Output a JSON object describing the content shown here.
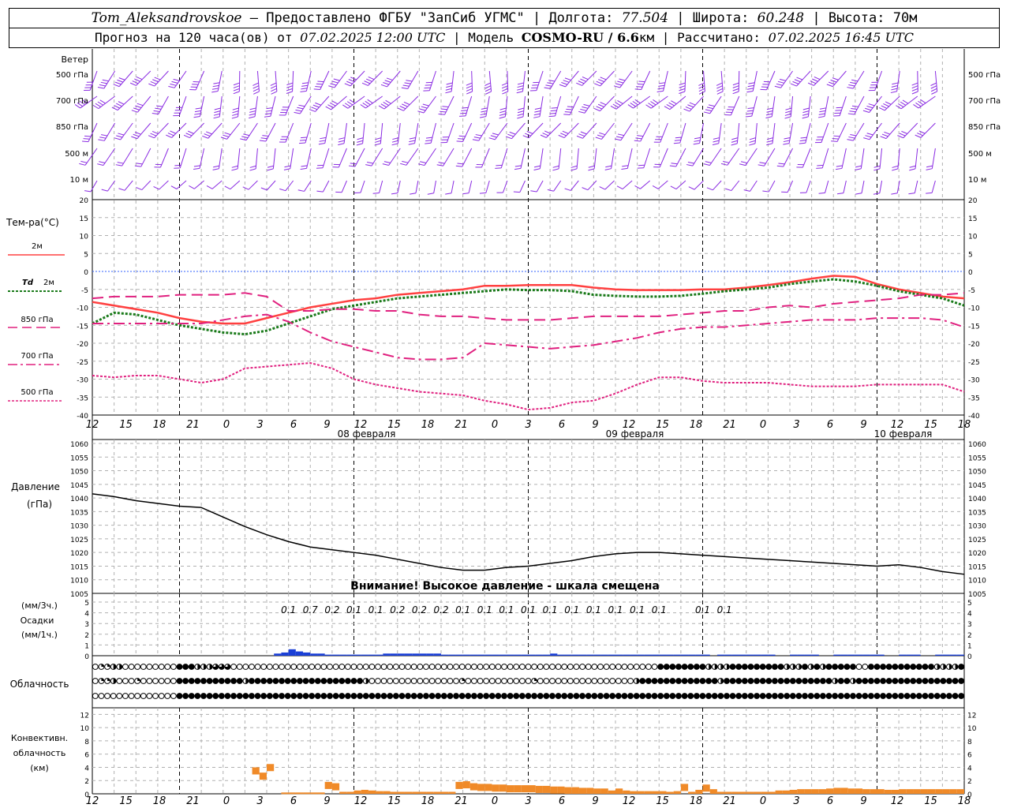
{
  "header": {
    "station": "Tom_Aleksandrovskoe",
    "provided": " — Предоставлено ФГБУ \"ЗапСиб УГМС\"",
    "lon_label": " | Долгота: ",
    "lon": "77.504",
    "lat_label": " | Широта: ",
    "lat": "60.248",
    "alt_label": " | Высота: ",
    "alt": "70м"
  },
  "subheader": {
    "forecast": "Прогноз на 120 часа(ов) от ",
    "from": "07.02.2025 12:00 UTC",
    "model_label": " | Модель ",
    "model": "COSMO-RU / 6.6",
    "model_unit": "км",
    "calc_label": " | Рассчитано: ",
    "calc": "07.02.2025 16:45 UTC"
  },
  "labels": {
    "wind": "Ветер",
    "levels": [
      "500 гПа",
      "700 гПа",
      "850 гПа",
      "500 м",
      "10  м"
    ],
    "temp": "Тем-ра(°C)",
    "t2m": "2м",
    "td": "Td",
    "td2m": "2м",
    "t850": "850 гПа",
    "t700": "700 гПа",
    "t500": "500 гПа",
    "pressure": "Давление",
    "pressure_unit": "(гПа)",
    "precip_unit3": "(мм/3ч.)",
    "precip": "Осадки",
    "precip_unit1": "(мм/1ч.)",
    "cloud": "Облачность",
    "conv1": "Конвективн.",
    "conv2": "облачность",
    "conv3": "(км)",
    "warning": "Внимание! Высокое давление - шкала смещена"
  },
  "colors": {
    "wind": "#8a2be2",
    "t2m": "#ff4040",
    "td": "#1a7a1a",
    "upper": "#e0207f",
    "zero_line": "#3060ff",
    "precip": "#1a3fd6",
    "conv": "#f08a28"
  },
  "chart_data": {
    "type": "line",
    "x_hours": [
      12,
      15,
      18,
      21,
      0,
      3,
      6,
      9,
      12,
      15,
      18,
      21,
      0,
      3,
      6,
      9,
      12,
      15,
      18,
      21,
      0,
      3,
      6,
      9,
      12,
      15,
      18
    ],
    "dates": [
      "08 февраля",
      "09 февраля",
      "10 февраля"
    ],
    "temperature": {
      "ylim": [
        -40,
        20
      ],
      "yticks": [
        20,
        15,
        10,
        5,
        0,
        -5,
        -10,
        -15,
        -20,
        -25,
        -30,
        -35,
        -40
      ],
      "x": [
        0,
        3,
        6,
        9,
        12,
        15,
        18,
        21,
        24,
        27,
        30,
        33,
        36,
        39,
        42,
        45,
        48,
        51,
        54,
        57,
        60,
        63,
        66,
        69,
        72,
        75,
        78,
        81,
        84,
        87,
        90,
        93,
        96,
        99,
        102,
        105,
        108,
        111,
        114,
        117,
        120
      ],
      "series": [
        {
          "name": "2м",
          "values": [
            -8.5,
            -9.5,
            -10.5,
            -11.5,
            -13,
            -14,
            -14.5,
            -14.5,
            -13,
            -11.5,
            -10,
            -9,
            -8,
            -7.5,
            -6.5,
            -6,
            -5.5,
            -5,
            -4,
            -4,
            -3.8,
            -3.8,
            -3.8,
            -4.5,
            -5,
            -5.2,
            -5.2,
            -5.2,
            -5,
            -5,
            -4.5,
            -3.8,
            -3,
            -2,
            -1.2,
            -1.5,
            -3.5,
            -5,
            -6,
            -7,
            -7.5
          ]
        },
        {
          "name": "Td 2м",
          "values": [
            -14.5,
            -11.5,
            -12,
            -13.5,
            -15,
            -16,
            -17,
            -17.5,
            -16.5,
            -14.5,
            -12.5,
            -10.5,
            -9.5,
            -8.5,
            -7.5,
            -7,
            -6.5,
            -6,
            -5.5,
            -5,
            -5.2,
            -5.2,
            -5.5,
            -6.5,
            -6.8,
            -7,
            -7,
            -6.8,
            -6.2,
            -5.5,
            -5,
            -4.5,
            -3.5,
            -2.8,
            -2.2,
            -2.8,
            -4,
            -5.5,
            -6.5,
            -7.5,
            -9.5
          ]
        },
        {
          "name": "850 гПа",
          "values": [
            -7.5,
            -7,
            -7,
            -7,
            -6.5,
            -6.5,
            -6.5,
            -6,
            -7,
            -11,
            -11,
            -10.5,
            -10.5,
            -11,
            -11,
            -12,
            -12.5,
            -12.5,
            -13,
            -13.5,
            -13.5,
            -13.5,
            -13,
            -12.5,
            -12.5,
            -12.5,
            -12.5,
            -12,
            -11.5,
            -11,
            -11,
            -10,
            -9.5,
            -10,
            -9,
            -8.5,
            -8,
            -7.5,
            -6.5,
            -6.5,
            -6
          ]
        },
        {
          "name": "700 гПа",
          "values": [
            -14.5,
            -14.5,
            -14.5,
            -14.5,
            -14.5,
            -14.5,
            -13.5,
            -12.5,
            -12,
            -14,
            -17,
            -19.5,
            -21,
            -22.5,
            -24,
            -24.5,
            -24.5,
            -24,
            -20,
            -20.5,
            -21,
            -21.5,
            -21,
            -20.5,
            -19.5,
            -18.5,
            -17,
            -16,
            -15.5,
            -15.5,
            -15,
            -14.5,
            -14,
            -13.5,
            -13.5,
            -13.5,
            -13,
            -13,
            -13,
            -13.5,
            -15.5
          ]
        },
        {
          "name": "500 гПа",
          "values": [
            -29,
            -29.5,
            -29,
            -29,
            -30,
            -31,
            -30,
            -27,
            -26.5,
            -26,
            -25.5,
            -27,
            -30,
            -31.5,
            -32.5,
            -33.5,
            -34,
            -34.5,
            -36,
            -37,
            -38.5,
            -38,
            -36.5,
            -36,
            -34,
            -31.5,
            -29.5,
            -29.5,
            -30.5,
            -31,
            -31,
            -31,
            -31.5,
            -32,
            -32,
            -32,
            -31.5,
            -31.5,
            -31.5,
            -31.5,
            -33.5
          ]
        }
      ]
    },
    "pressure": {
      "ylim": [
        1005,
        1060
      ],
      "yticks": [
        1060,
        1055,
        1050,
        1045,
        1040,
        1035,
        1030,
        1025,
        1020,
        1015,
        1010,
        1005
      ],
      "x": [
        0,
        3,
        6,
        9,
        12,
        15,
        18,
        21,
        24,
        27,
        30,
        33,
        36,
        39,
        42,
        45,
        48,
        51,
        54,
        57,
        60,
        63,
        66,
        69,
        72,
        75,
        78,
        81,
        84,
        87,
        90,
        93,
        96,
        99,
        102,
        105,
        108,
        111,
        114,
        117,
        120
      ],
      "values": [
        1041.5,
        1040.5,
        1039,
        1038,
        1037,
        1036.5,
        1033,
        1029.5,
        1026.5,
        1024,
        1022,
        1021,
        1020,
        1019,
        1017.5,
        1016,
        1014.5,
        1013.5,
        1013.5,
        1014.5,
        1015,
        1016,
        1017,
        1018.5,
        1019.5,
        1020,
        1020,
        1019.5,
        1019,
        1018.5,
        1018,
        1017.5,
        1017,
        1016.5,
        1016,
        1015.5,
        1015,
        1015.5,
        1014.5,
        1013,
        1012
      ]
    },
    "precipitation": {
      "ylim": [
        0,
        5
      ],
      "yticks": [
        5,
        4,
        3,
        2,
        1,
        0
      ],
      "totals_3h": [
        "0.1",
        "0.7",
        "0.2",
        "0.1",
        "0.1",
        "0.2",
        "0.2",
        "0.2",
        "0.1",
        "0.1",
        "0.1",
        "0.1",
        "0.1",
        "0.1",
        "0.1",
        "0.1",
        "0.1",
        "0.1",
        "0.1",
        "0.1"
      ],
      "totals_x": [
        27,
        30,
        33,
        36,
        39,
        42,
        45,
        48,
        51,
        54,
        57,
        60,
        63,
        66,
        69,
        72,
        75,
        78,
        84,
        87
      ],
      "hourly": [
        [
          26,
          0.2
        ],
        [
          27,
          0.3
        ],
        [
          28,
          0.6
        ],
        [
          29,
          0.4
        ],
        [
          30,
          0.3
        ],
        [
          31,
          0.2
        ],
        [
          32,
          0.2
        ],
        [
          33,
          0.1
        ],
        [
          34,
          0.1
        ],
        [
          35,
          0.1
        ],
        [
          36,
          0.1
        ],
        [
          37,
          0.1
        ],
        [
          38,
          0.1
        ],
        [
          39,
          0.1
        ],
        [
          40,
          0.1
        ],
        [
          41,
          0.2
        ],
        [
          42,
          0.2
        ],
        [
          43,
          0.2
        ],
        [
          44,
          0.2
        ],
        [
          45,
          0.2
        ],
        [
          46,
          0.2
        ],
        [
          47,
          0.2
        ],
        [
          48,
          0.2
        ],
        [
          49,
          0.1
        ],
        [
          50,
          0.1
        ],
        [
          51,
          0.1
        ],
        [
          52,
          0.1
        ],
        [
          53,
          0.1
        ],
        [
          54,
          0.1
        ],
        [
          55,
          0.1
        ],
        [
          56,
          0.1
        ],
        [
          57,
          0.1
        ],
        [
          58,
          0.1
        ],
        [
          59,
          0.1
        ],
        [
          60,
          0.1
        ],
        [
          61,
          0.1
        ],
        [
          62,
          0.1
        ],
        [
          63,
          0.1
        ],
        [
          64,
          0.2
        ],
        [
          65,
          0.1
        ],
        [
          66,
          0.1
        ],
        [
          67,
          0.1
        ],
        [
          68,
          0.1
        ],
        [
          69,
          0.1
        ],
        [
          70,
          0.1
        ],
        [
          71,
          0.1
        ],
        [
          72,
          0.1
        ],
        [
          73,
          0.1
        ],
        [
          74,
          0.1
        ],
        [
          75,
          0.1
        ],
        [
          76,
          0.1
        ],
        [
          77,
          0.1
        ],
        [
          78,
          0.1
        ],
        [
          79,
          0.1
        ],
        [
          80,
          0.1
        ],
        [
          81,
          0.1
        ],
        [
          82,
          0.1
        ],
        [
          83,
          0.1
        ],
        [
          84,
          0.1
        ],
        [
          85,
          0.1
        ],
        [
          87,
          0.1
        ],
        [
          88,
          0.1
        ],
        [
          89,
          0.1
        ],
        [
          90,
          0.1
        ],
        [
          91,
          0.1
        ],
        [
          92,
          0.1
        ],
        [
          93,
          0.1
        ],
        [
          94,
          0.1
        ],
        [
          97,
          0.1
        ],
        [
          98,
          0.1
        ],
        [
          99,
          0.1
        ],
        [
          100,
          0.1
        ],
        [
          103,
          0.1
        ],
        [
          104,
          0.1
        ],
        [
          105,
          0.1
        ],
        [
          106,
          0.1
        ],
        [
          107,
          0.1
        ],
        [
          108,
          0.1
        ],
        [
          109,
          0.1
        ],
        [
          112,
          0.1
        ],
        [
          113,
          0.1
        ],
        [
          114,
          0.1
        ],
        [
          117,
          0.1
        ],
        [
          118,
          0.1
        ],
        [
          119,
          0.1
        ],
        [
          120,
          0.1
        ]
      ]
    },
    "convective_cloud": {
      "ylim": [
        0,
        13
      ],
      "yticks": [
        12,
        10,
        8,
        6,
        4,
        2,
        0
      ],
      "bars": [
        [
          23,
          4
        ],
        [
          24,
          3.2
        ],
        [
          25,
          4.5
        ],
        [
          27,
          0.2
        ],
        [
          28,
          0.2
        ],
        [
          29,
          0.2
        ],
        [
          30,
          0.2
        ],
        [
          31,
          0.2
        ],
        [
          32,
          0.2
        ],
        [
          33,
          1.8
        ],
        [
          34,
          1.6
        ],
        [
          35,
          0.3
        ],
        [
          36,
          0.3
        ],
        [
          37,
          0.5
        ],
        [
          38,
          0.6
        ],
        [
          39,
          0.5
        ],
        [
          40,
          0.4
        ],
        [
          41,
          0.4
        ],
        [
          42,
          0.3
        ],
        [
          43,
          0.3
        ],
        [
          44,
          0.3
        ],
        [
          45,
          0.3
        ],
        [
          46,
          0.3
        ],
        [
          47,
          0.3
        ],
        [
          48,
          0.3
        ],
        [
          49,
          0.3
        ],
        [
          50,
          0.3
        ],
        [
          51,
          1.8
        ],
        [
          52,
          1.9
        ],
        [
          53,
          1.6
        ],
        [
          54,
          1.5
        ],
        [
          55,
          1.5
        ],
        [
          56,
          1.4
        ],
        [
          57,
          1.4
        ],
        [
          58,
          1.3
        ],
        [
          59,
          1.3
        ],
        [
          60,
          1.3
        ],
        [
          61,
          1.3
        ],
        [
          62,
          1.2
        ],
        [
          63,
          1.2
        ],
        [
          64,
          1.1
        ],
        [
          65,
          1.1
        ],
        [
          66,
          1.0
        ],
        [
          67,
          1.0
        ],
        [
          68,
          0.9
        ],
        [
          69,
          0.9
        ],
        [
          70,
          0.8
        ],
        [
          71,
          0.8
        ],
        [
          72,
          0.5
        ],
        [
          73,
          0.8
        ],
        [
          74,
          0.5
        ],
        [
          75,
          0.4
        ],
        [
          76,
          0.4
        ],
        [
          77,
          0.4
        ],
        [
          78,
          0.4
        ],
        [
          79,
          0.4
        ],
        [
          80,
          0.3
        ],
        [
          81,
          0.4
        ],
        [
          82,
          1.5
        ],
        [
          83,
          0.3
        ],
        [
          84,
          0.6
        ],
        [
          85,
          1.4
        ],
        [
          86,
          0.7
        ],
        [
          87,
          0.3
        ],
        [
          88,
          0.3
        ],
        [
          89,
          0.3
        ],
        [
          90,
          0.3
        ],
        [
          91,
          0.3
        ],
        [
          92,
          0.3
        ],
        [
          93,
          0.3
        ],
        [
          94,
          0.3
        ],
        [
          95,
          0.5
        ],
        [
          96,
          0.5
        ],
        [
          97,
          0.6
        ],
        [
          98,
          0.7
        ],
        [
          99,
          0.7
        ],
        [
          100,
          0.7
        ],
        [
          101,
          0.7
        ],
        [
          102,
          0.8
        ],
        [
          103,
          0.9
        ],
        [
          104,
          0.9
        ],
        [
          105,
          0.8
        ],
        [
          106,
          0.8
        ],
        [
          107,
          0.7
        ],
        [
          108,
          0.7
        ],
        [
          109,
          0.7
        ],
        [
          110,
          0.6
        ],
        [
          111,
          0.6
        ],
        [
          112,
          0.7
        ],
        [
          113,
          0.7
        ],
        [
          114,
          0.7
        ],
        [
          115,
          0.7
        ],
        [
          116,
          0.7
        ],
        [
          117,
          0.7
        ],
        [
          118,
          0.7
        ],
        [
          119,
          0.7
        ],
        [
          120,
          0.7
        ]
      ]
    },
    "cloudiness": {
      "levels": [
        "high",
        "middle",
        "low"
      ],
      "steps_per_row": 48,
      "rows": [
        "0112200000000044422233300000000000000000000000000000000000000000000000000000000000000000000000444444442222444444444222424244444004444444444422224",
        "0112000100000044444444444244444444444444444442000000000000000100000000000100000000000000002444444444444424444444444444444442442444444444444444444",
        "0000000000000044444444444444444444444444444444444444444444444444444444444444444444444444444444444444444444444444444444444444444444444444444444444"
      ]
    },
    "wind": {
      "rows": [
        "500 гПа",
        "700 гПа",
        "850 гПа",
        "500 м",
        "10  м"
      ]
    }
  }
}
